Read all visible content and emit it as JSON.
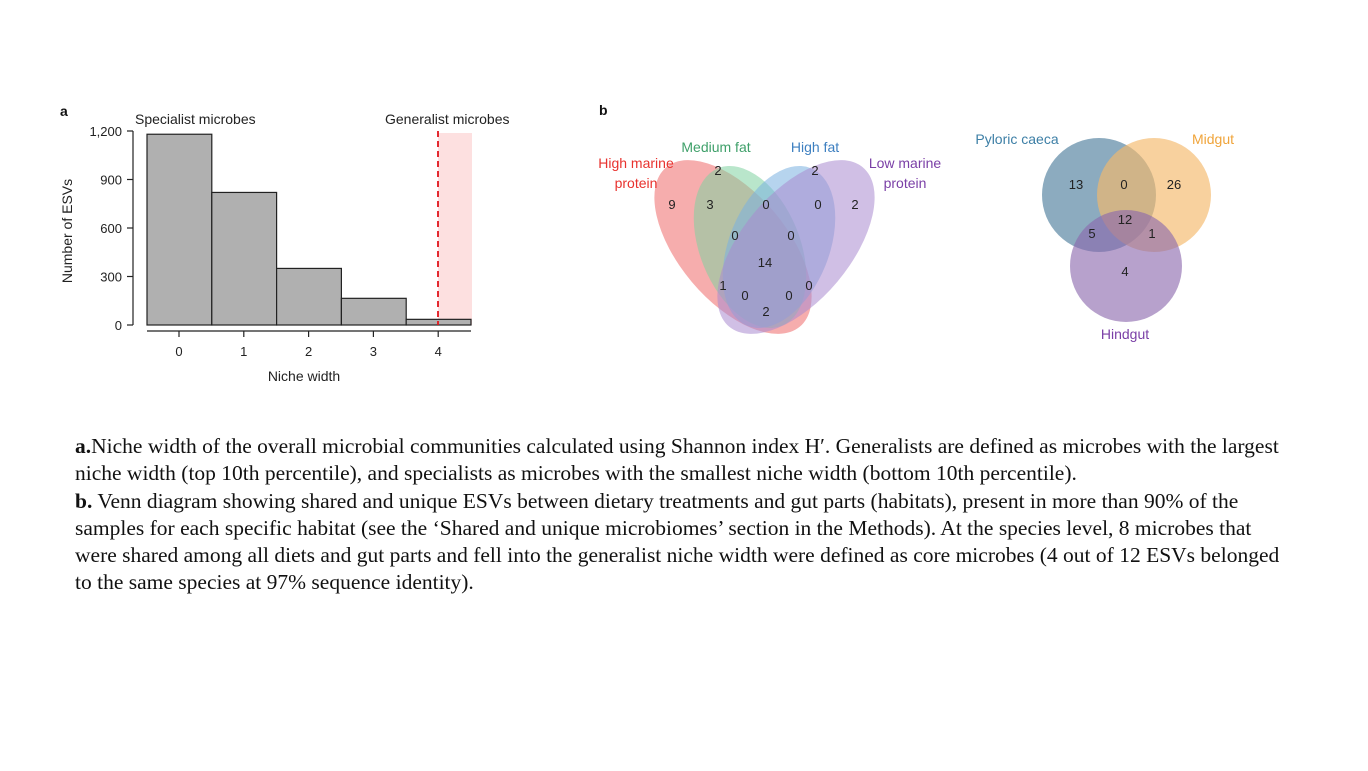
{
  "panel_a": {
    "label": "a",
    "specialist_label": "Specialist microbes",
    "generalist_label": "Generalist microbes"
  },
  "panel_b": {
    "label": "b",
    "diet_venn": {
      "sets": [
        {
          "name": "High marine\nprotein",
          "color": "#e8322e"
        },
        {
          "name": "Medium fat",
          "color": "#3fa06a"
        },
        {
          "name": "High fat",
          "color": "#3d7fc0"
        },
        {
          "name": "Low marine\nprotein",
          "color": "#7a3fa6"
        }
      ],
      "region_counts": {
        "only_high_marine_protein": "9",
        "only_medium_fat": "2",
        "only_high_fat": "2",
        "only_low_marine_protein": "2",
        "hmp_mf": "3",
        "mf_hf": "0",
        "hf_lmp": "0",
        "hmp_mf_hf": "0",
        "mf_hf_lmp": "0",
        "all_four": "14",
        "hmp_lmp": "1",
        "hmp_mf_lmp": "0",
        "hmp_hf_lmp": "0",
        "lmp_hf": "0",
        "hmp_hf": "2"
      }
    },
    "gut_venn": {
      "sets": [
        {
          "name": "Pyloric caeca",
          "color": "#3d7fa6"
        },
        {
          "name": "Midgut",
          "color": "#f0a43a"
        },
        {
          "name": "Hindgut",
          "color": "#7a3fa6"
        }
      ],
      "region_counts": {
        "only_pyloric_caeca": "13",
        "pc_mg": "0",
        "only_midgut": "26",
        "all_three": "12",
        "pc_hg": "5",
        "mg_hg": "1",
        "only_hindgut": "4"
      }
    }
  },
  "chart_data": {
    "type": "bar",
    "categories": [
      "0",
      "1",
      "2",
      "3",
      "4"
    ],
    "values": [
      1180,
      820,
      350,
      165,
      35
    ],
    "title": "",
    "xlabel": "Niche width",
    "ylabel": "Number of ESVs",
    "ylim": [
      0,
      1200
    ],
    "yticks": [
      "0",
      "300",
      "600",
      "900",
      "1,200"
    ],
    "xticks": [
      "0",
      "1",
      "2",
      "3",
      "4"
    ],
    "grid": false,
    "threshold_line_x": 4,
    "bar_color": "#b0b0b0",
    "highlight_color": "#fde0e0",
    "threshold_color": "#e0141c"
  },
  "caption": {
    "a_label": "a.",
    "a_text": "Niche width of the overall microbial communities calculated using Shannon index H′. Generalists are defined as microbes with the largest niche width (top 10th percentile), and specialists as microbes with the smallest niche width (bottom 10th percentile).",
    "b_label": "b.",
    "b_text": " Venn diagram showing shared and unique ESVs between dietary treatments and gut parts (habitats), present in more than 90% of the samples for each specific habitat (see the ‘Shared and unique microbiomes’ section in the Methods). At the species level, 8 microbes that were shared among all diets and gut parts and fell into the generalist niche width were defined as core microbes (4 out of 12 ESVs belonged to the same species at 97% sequence identity)."
  }
}
